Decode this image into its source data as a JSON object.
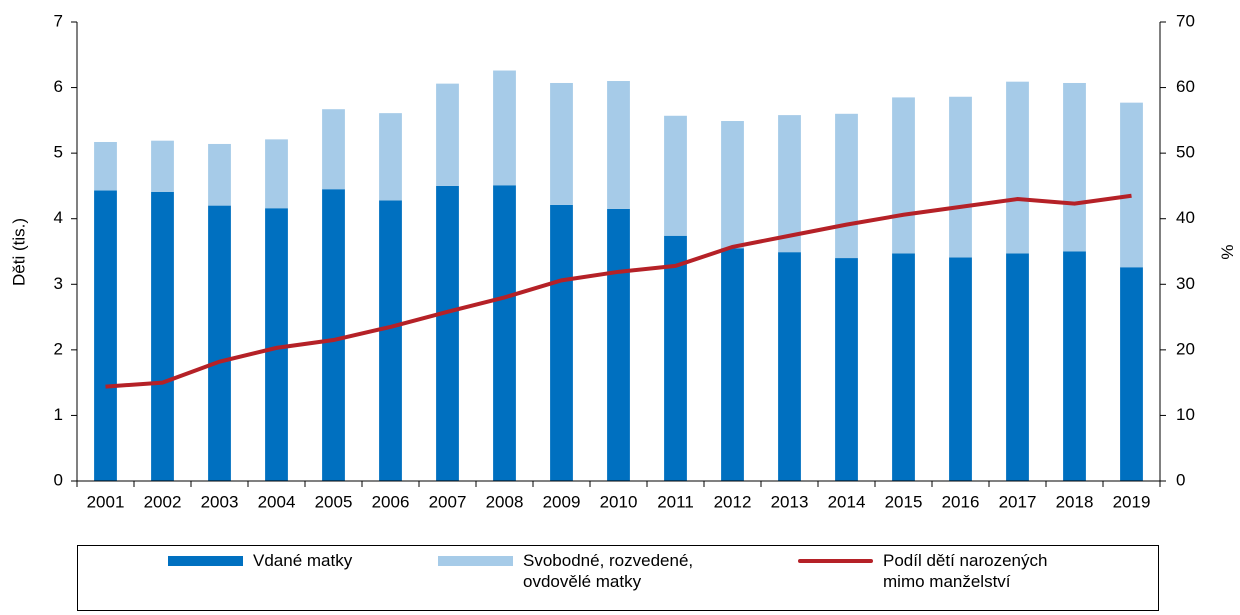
{
  "chart_data": {
    "type": "bar_line",
    "y_label": "Děti (tis.)",
    "y2_label": "%",
    "categories": [
      "2001",
      "2002",
      "2003",
      "2004",
      "2005",
      "2006",
      "2007",
      "2008",
      "2009",
      "2010",
      "2011",
      "2012",
      "2013",
      "2014",
      "2015",
      "2016",
      "2017",
      "2018",
      "2019"
    ],
    "series": [
      {
        "name": "Vdané matky",
        "color": "#0070c0",
        "type": "bar",
        "values": [
          4.43,
          4.41,
          4.2,
          4.16,
          4.45,
          4.28,
          4.5,
          4.51,
          4.21,
          4.15,
          3.74,
          3.55,
          3.49,
          3.4,
          3.47,
          3.41,
          3.47,
          3.5,
          3.26
        ]
      },
      {
        "name": "Svobodné, rozvedené,\novdovělé matky",
        "color": "#a6cbe8",
        "type": "bar",
        "values": [
          0.74,
          0.78,
          0.94,
          1.05,
          1.22,
          1.33,
          1.56,
          1.75,
          1.86,
          1.95,
          1.83,
          1.94,
          2.09,
          2.2,
          2.38,
          2.45,
          2.62,
          2.57,
          2.51
        ]
      },
      {
        "name": "Podíl dětí narozených\nmimo manželství",
        "color": "#b52127",
        "type": "line",
        "axis": "y2",
        "values": [
          14.4,
          15.0,
          18.2,
          20.3,
          21.5,
          23.5,
          25.8,
          28.0,
          30.6,
          31.9,
          32.8,
          35.7,
          37.4,
          39.1,
          40.6,
          41.8,
          43.0,
          42.3,
          43.5
        ]
      }
    ],
    "ylim": [
      0,
      7
    ],
    "yticks": [
      0,
      1,
      2,
      3,
      4,
      5,
      6,
      7
    ],
    "y2lim": [
      0,
      70
    ],
    "y2ticks": [
      0,
      10,
      20,
      30,
      40,
      50,
      60,
      70
    ]
  }
}
